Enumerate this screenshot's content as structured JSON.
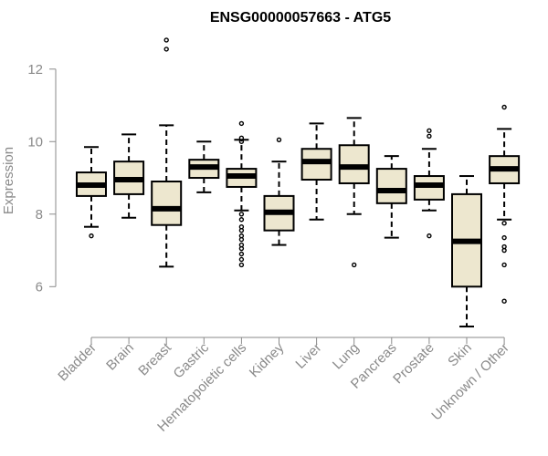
{
  "chart_data": {
    "type": "boxplot",
    "title": "ENSG00000057663 - ATG5",
    "xlabel": "",
    "ylabel": "Expression",
    "ylim": [
      4.8,
      13.0
    ],
    "yticks": [
      6,
      8,
      10,
      12
    ],
    "box_color": "#ede7cf",
    "categories": [
      "Bladder",
      "Brain",
      "Breast",
      "Gastric",
      "Hematopoietic cells",
      "Kidney",
      "Liver",
      "Lung",
      "Pancreas",
      "Prostate",
      "Skin",
      "Unknown / Other"
    ],
    "boxes": [
      {
        "name": "Bladder",
        "whisker_low": 7.65,
        "q1": 8.5,
        "median": 8.8,
        "q3": 9.15,
        "whisker_high": 9.85,
        "outliers": [
          7.4
        ]
      },
      {
        "name": "Brain",
        "whisker_low": 7.9,
        "q1": 8.55,
        "median": 8.95,
        "q3": 9.45,
        "whisker_high": 10.2,
        "outliers": []
      },
      {
        "name": "Breast",
        "whisker_low": 6.55,
        "q1": 7.7,
        "median": 8.15,
        "q3": 8.9,
        "whisker_high": 10.45,
        "outliers": [
          12.55,
          12.8
        ]
      },
      {
        "name": "Gastric",
        "whisker_low": 8.6,
        "q1": 9.0,
        "median": 9.3,
        "q3": 9.5,
        "whisker_high": 10.0,
        "outliers": []
      },
      {
        "name": "Hematopoietic cells",
        "whisker_low": 8.1,
        "q1": 8.75,
        "median": 9.05,
        "q3": 9.25,
        "whisker_high": 10.05,
        "outliers": [
          10.5,
          10.1,
          10.0,
          8.0,
          7.85,
          7.65,
          7.55,
          7.4,
          7.3,
          7.15,
          7.05,
          6.9,
          6.75,
          6.6
        ]
      },
      {
        "name": "Kidney",
        "whisker_low": 7.15,
        "q1": 7.55,
        "median": 8.05,
        "q3": 8.5,
        "whisker_high": 9.45,
        "outliers": [
          10.05
        ]
      },
      {
        "name": "Liver",
        "whisker_low": 7.85,
        "q1": 8.95,
        "median": 9.45,
        "q3": 9.8,
        "whisker_high": 10.5,
        "outliers": []
      },
      {
        "name": "Lung",
        "whisker_low": 8.0,
        "q1": 8.85,
        "median": 9.3,
        "q3": 9.9,
        "whisker_high": 10.65,
        "outliers": [
          6.6
        ]
      },
      {
        "name": "Pancreas",
        "whisker_low": 7.35,
        "q1": 8.3,
        "median": 8.65,
        "q3": 9.25,
        "whisker_high": 9.6,
        "outliers": []
      },
      {
        "name": "Prostate",
        "whisker_low": 8.1,
        "q1": 8.4,
        "median": 8.8,
        "q3": 9.05,
        "whisker_high": 9.8,
        "outliers": [
          10.3,
          10.15,
          7.4
        ]
      },
      {
        "name": "Skin",
        "whisker_low": 4.9,
        "q1": 6.0,
        "median": 7.25,
        "q3": 8.55,
        "whisker_high": 9.05,
        "outliers": []
      },
      {
        "name": "Unknown / Other",
        "whisker_low": 7.85,
        "q1": 8.85,
        "median": 9.25,
        "q3": 9.6,
        "whisker_high": 10.35,
        "outliers": [
          10.95,
          7.75,
          7.35,
          7.1,
          7.0,
          6.6,
          5.6
        ]
      }
    ]
  }
}
